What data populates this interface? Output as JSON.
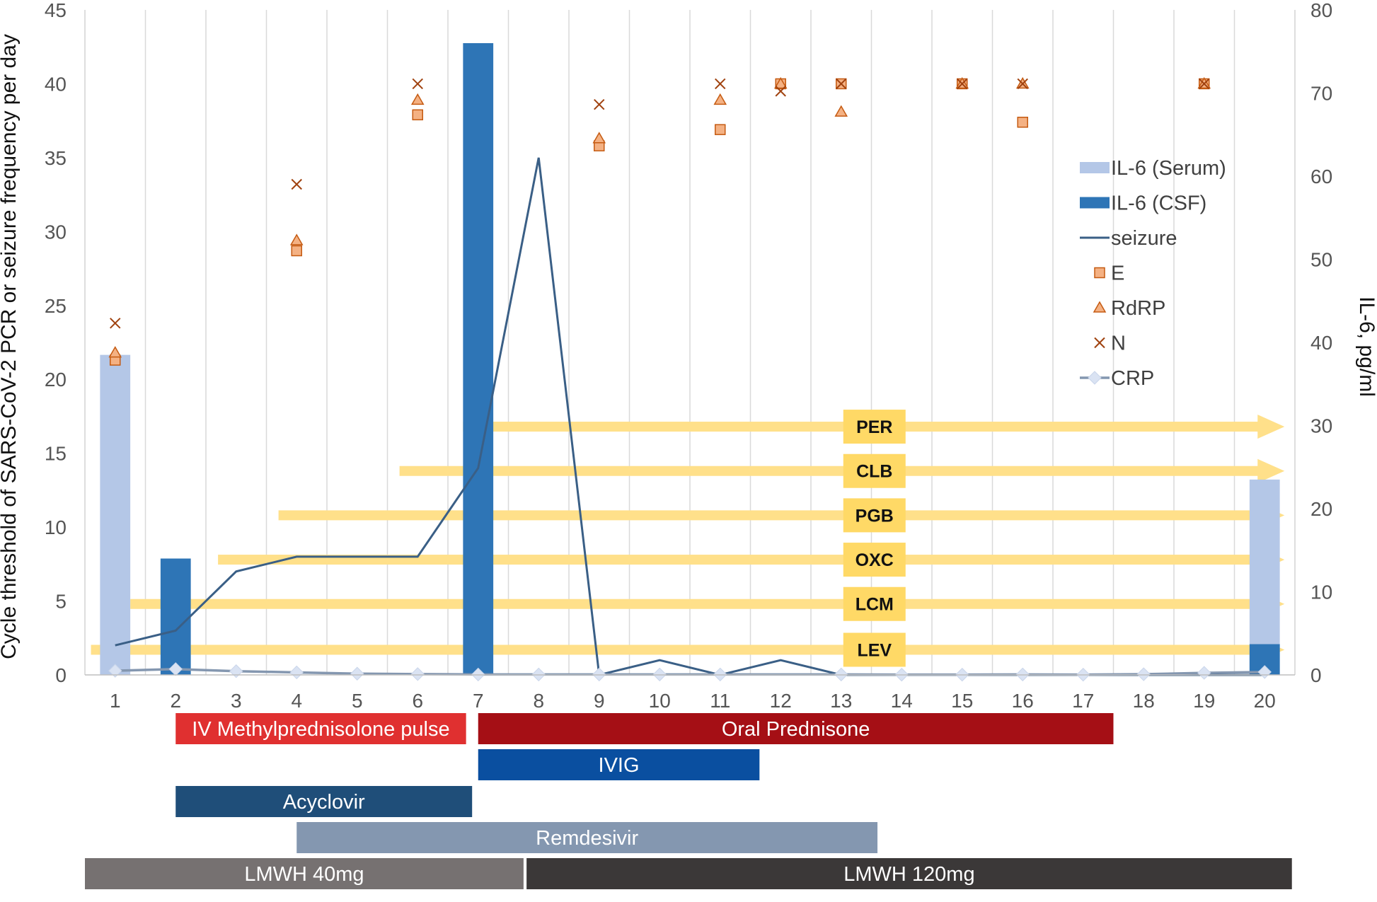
{
  "chart_data": {
    "type": "bar+line+scatter",
    "ylabel_left": "Cycle threshold of SARS-CoV-2 PCR or seizure frequency per day",
    "ylabel_right": "IL-6, pg/ml",
    "ylim_left": [
      0,
      45
    ],
    "ylim_right": [
      0,
      80
    ],
    "yticks_left": [
      "0",
      "5",
      "10",
      "15",
      "20",
      "25",
      "30",
      "35",
      "40",
      "45"
    ],
    "yticks_right": [
      "0",
      "10",
      "20",
      "30",
      "40",
      "50",
      "60",
      "70",
      "80"
    ],
    "days": [
      "1",
      "2",
      "3",
      "4",
      "5",
      "6",
      "7",
      "8",
      "9",
      "10",
      "11",
      "12",
      "13",
      "14",
      "15",
      "16",
      "17",
      "18",
      "19",
      "20"
    ],
    "grid": "vertical",
    "legend_position": "right",
    "colors": {
      "il6_serum": "#b4c7e7",
      "il6_csf": "#2e75b6",
      "seizure": "#3a5f86",
      "crp": "#8497b0",
      "crp_marker": "#dae3f3",
      "pcr_marker": "#f4b183",
      "pcr_edge": "#c55a11",
      "drug_arrow": "#ffe08a",
      "drug_box": "#ffd966"
    },
    "legend": [
      "IL-6 (Serum)",
      "IL-6 (CSF)",
      "seizure",
      "E",
      "RdRP",
      "N",
      "CRP"
    ],
    "il6_serum": [
      {
        "day": 1,
        "value": 38.5
      },
      {
        "day": 20,
        "value": 23.5
      }
    ],
    "il6_csf": [
      {
        "day": 2,
        "value": 14
      },
      {
        "day": 7,
        "value": 76
      },
      {
        "day": 20,
        "value": 3.7
      }
    ],
    "seizure": [
      {
        "day": 1,
        "value": 2
      },
      {
        "day": 2,
        "value": 3
      },
      {
        "day": 3,
        "value": 7
      },
      {
        "day": 4,
        "value": 8
      },
      {
        "day": 5,
        "value": 8
      },
      {
        "day": 6,
        "value": 8
      },
      {
        "day": 7,
        "value": 14
      },
      {
        "day": 8,
        "value": 35
      },
      {
        "day": 9,
        "value": 0
      },
      {
        "day": 10,
        "value": 1
      },
      {
        "day": 11,
        "value": 0
      },
      {
        "day": 12,
        "value": 1
      },
      {
        "day": 13,
        "value": 0
      },
      {
        "day": 14,
        "value": 0
      },
      {
        "day": 15,
        "value": 0
      },
      {
        "day": 16,
        "value": 0
      },
      {
        "day": 17,
        "value": 0
      },
      {
        "day": 18,
        "value": 0
      },
      {
        "day": 19,
        "value": 0
      },
      {
        "day": 20,
        "value": 0
      }
    ],
    "crp": [
      {
        "day": 1,
        "value": 0.5
      },
      {
        "day": 2,
        "value": 0.7
      },
      {
        "day": 3,
        "value": 0.45
      },
      {
        "day": 4,
        "value": 0.3
      },
      {
        "day": 5,
        "value": 0.15
      },
      {
        "day": 6,
        "value": 0.1
      },
      {
        "day": 7,
        "value": 0.05
      },
      {
        "day": 8,
        "value": 0.05
      },
      {
        "day": 9,
        "value": 0.05
      },
      {
        "day": 10,
        "value": 0.05
      },
      {
        "day": 11,
        "value": 0.05
      },
      {
        "day": 13,
        "value": 0.05
      },
      {
        "day": 14,
        "value": 0.03
      },
      {
        "day": 15,
        "value": 0.03
      },
      {
        "day": 16,
        "value": 0.05
      },
      {
        "day": 17,
        "value": 0.03
      },
      {
        "day": 18,
        "value": 0.08
      },
      {
        "day": 19,
        "value": 0.25
      },
      {
        "day": 20,
        "value": 0.35
      }
    ],
    "pcr_E": [
      {
        "day": 1,
        "value": 21.3
      },
      {
        "day": 4,
        "value": 28.7
      },
      {
        "day": 6,
        "value": 37.9
      },
      {
        "day": 9,
        "value": 35.8
      },
      {
        "day": 11,
        "value": 36.9
      },
      {
        "day": 12,
        "value": 40
      },
      {
        "day": 13,
        "value": 40
      },
      {
        "day": 15,
        "value": 40
      },
      {
        "day": 16,
        "value": 37.4
      },
      {
        "day": 19,
        "value": 40
      }
    ],
    "pcr_RdRP": [
      {
        "day": 1,
        "value": 21.8
      },
      {
        "day": 4,
        "value": 29.4
      },
      {
        "day": 6,
        "value": 38.9
      },
      {
        "day": 9,
        "value": 36.3
      },
      {
        "day": 11,
        "value": 38.9
      },
      {
        "day": 12,
        "value": 40
      },
      {
        "day": 13,
        "value": 38.1
      },
      {
        "day": 15,
        "value": 40
      },
      {
        "day": 16,
        "value": 40
      },
      {
        "day": 19,
        "value": 40
      }
    ],
    "pcr_N": [
      {
        "day": 1,
        "value": 23.8
      },
      {
        "day": 4,
        "value": 33.2
      },
      {
        "day": 6,
        "value": 40
      },
      {
        "day": 9,
        "value": 38.6
      },
      {
        "day": 11,
        "value": 40
      },
      {
        "day": 12,
        "value": 39.5
      },
      {
        "day": 13,
        "value": 40
      },
      {
        "day": 15,
        "value": 40
      },
      {
        "day": 16,
        "value": 40
      },
      {
        "day": 19,
        "value": 40
      }
    ],
    "drugs": [
      {
        "name": "PER",
        "start_day": 6.75,
        "y_value": 16.8
      },
      {
        "name": "CLB",
        "start_day": 5.7,
        "y_value": 13.8
      },
      {
        "name": "PGB",
        "start_day": 3.7,
        "y_value": 10.8
      },
      {
        "name": "OXC",
        "start_day": 2.7,
        "y_value": 7.8
      },
      {
        "name": "LCM",
        "start_day": 1.25,
        "y_value": 4.8
      },
      {
        "name": "LEV",
        "start_day": 0.6,
        "y_value": 1.7
      }
    ],
    "treatments": [
      {
        "label": "IV Methylprednisolone pulse",
        "start_day": 2,
        "end_day": 6.8,
        "row": 0,
        "color": "#e03030"
      },
      {
        "label": "Oral Prednisone",
        "start_day": 7,
        "end_day": 17.5,
        "row": 0,
        "color": "#a50f15"
      },
      {
        "label": "IVIG",
        "start_day": 7,
        "end_day": 11.65,
        "row": 1,
        "color": "#0a4fa0"
      },
      {
        "label": "Acyclovir",
        "start_day": 2,
        "end_day": 6.9,
        "row": 2,
        "color": "#1f4e79"
      },
      {
        "label": "Remdesivir",
        "start_day": 4,
        "end_day": 13.6,
        "row": 3,
        "color": "#8497b0"
      },
      {
        "label": "LMWH 40mg",
        "start_day": 0.5,
        "end_day": 7.75,
        "row": 4,
        "color": "#767171"
      },
      {
        "label": "LMWH 120mg",
        "start_day": 7.8,
        "end_day": 20.45,
        "row": 4,
        "color": "#3b3838"
      }
    ]
  }
}
